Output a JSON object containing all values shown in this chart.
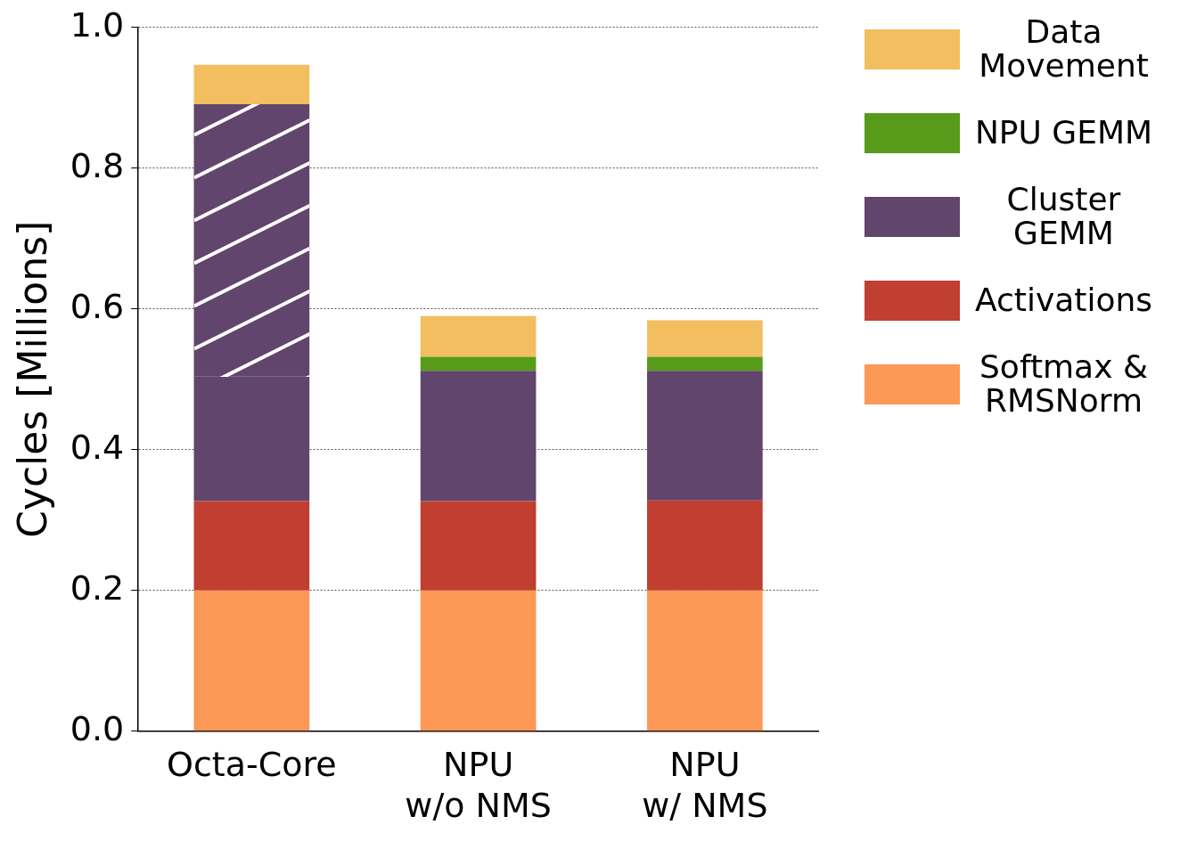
{
  "chart_data": {
    "type": "bar",
    "stacked": true,
    "ylabel": "Cycles [Millions]",
    "categories": [
      "Octa-Core",
      "NPU\nw/o NMS",
      "NPU\nw/ NMS"
    ],
    "series": [
      {
        "name": "Softmax & RMSNorm",
        "color": "#fd9856",
        "values": [
          0.2,
          0.2,
          0.2
        ]
      },
      {
        "name": "Activations",
        "color": "#c03f30",
        "values": [
          0.127,
          0.127,
          0.128
        ]
      },
      {
        "name": "Cluster GEMM",
        "color": "#61456d",
        "values": [
          0.177,
          0.185,
          0.184
        ]
      },
      {
        "color": "#61456d",
        "values": [
          0.387,
          0,
          0
        ]
      },
      {
        "name": "NPU GEMM",
        "color": "#589a19",
        "values": [
          0,
          0.02,
          0.02
        ]
      },
      {
        "name": "Data Movement",
        "color": "#f2be5f",
        "values": [
          0.056,
          0.058,
          0.052
        ]
      }
    ],
    "ylim": [
      0,
      1
    ],
    "yticks": [
      {
        "value": 0,
        "label": "0.0"
      },
      {
        "value": 0.2,
        "label": "0.2"
      },
      {
        "value": 0.4,
        "label": "0.4"
      },
      {
        "value": 0.6,
        "label": "0.6"
      },
      {
        "value": 0.8,
        "label": "0.8"
      },
      {
        "value": 1,
        "label": "1.0"
      }
    ],
    "grid": "y",
    "legend": "right"
  }
}
